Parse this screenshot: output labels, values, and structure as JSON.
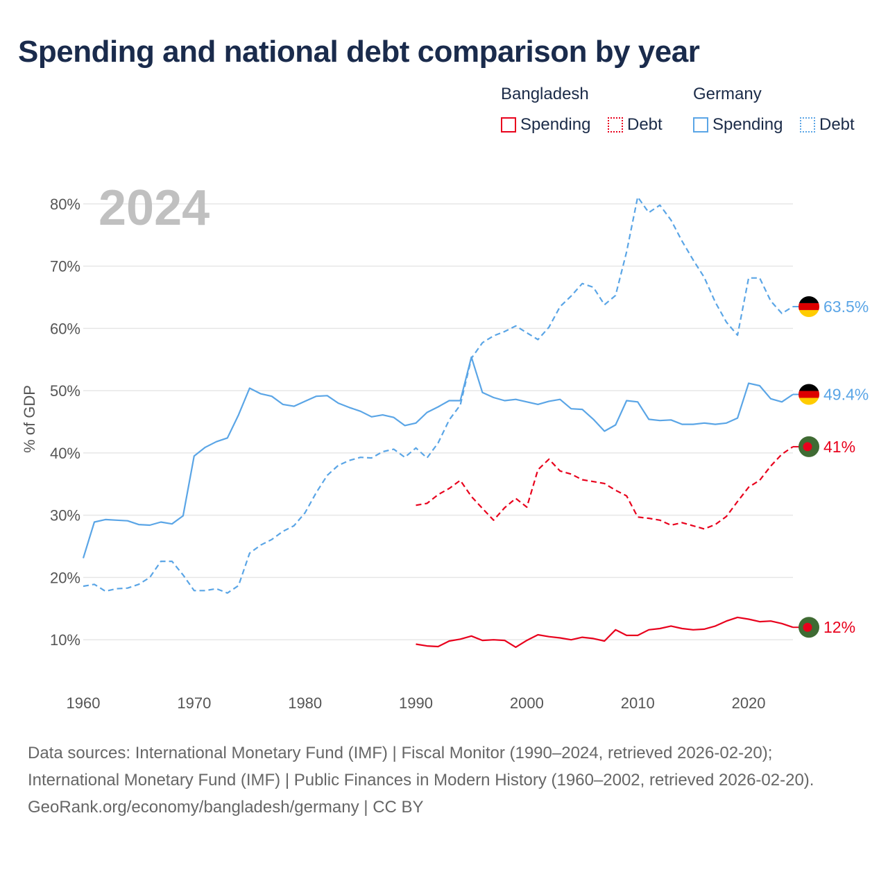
{
  "title": "Spending and national debt comparison by year",
  "legend": {
    "groups": [
      {
        "name": "Bangladesh",
        "spending_label": "Spending",
        "debt_label": "Debt",
        "color": "#e8001c"
      },
      {
        "name": "Germany",
        "spending_label": "Spending",
        "debt_label": "Debt",
        "color": "#5aa5e6"
      }
    ]
  },
  "footer": {
    "sources": "Data sources: International Monetary Fund (IMF) | Fiscal Monitor (1990–2024, retrieved 2026-02-20); International Monetary Fund (IMF) | Public Finances in Modern History (1960–2002, retrieved 2026-02-20).",
    "credit": "GeoRank.org/economy/bangladesh/germany | CC BY"
  },
  "chart_data": {
    "type": "line",
    "title": "Spending and national debt comparison by year",
    "year_overlay": "2024",
    "ylabel": "% of GDP",
    "xlabel": "",
    "xlim": [
      1960,
      2024
    ],
    "ylim": [
      3,
      86
    ],
    "yticks": [
      10,
      20,
      30,
      40,
      50,
      60,
      70,
      80
    ],
    "ytick_labels": [
      "10%",
      "20%",
      "30%",
      "40%",
      "50%",
      "60%",
      "70%",
      "80%"
    ],
    "xticks": [
      1960,
      1970,
      1980,
      1990,
      2000,
      2010,
      2020
    ],
    "xtick_labels": [
      "1960",
      "1970",
      "1980",
      "1990",
      "2000",
      "2010",
      "2020"
    ],
    "grid": true,
    "legend_position": "top-right",
    "series": [
      {
        "name": "Germany Debt",
        "country": "Germany",
        "measure": "Debt",
        "color": "#5aa5e6",
        "dash": "dashed",
        "end_label": "63.5%",
        "flag": "germany",
        "start_year": 1960,
        "values": [
          18.6,
          18.9,
          17.8,
          18.2,
          18.3,
          18.9,
          20.0,
          22.6,
          22.6,
          20.4,
          17.9,
          17.9,
          18.2,
          17.5,
          18.7,
          23.9,
          25.2,
          26.1,
          27.4,
          28.3,
          30.4,
          33.6,
          36.4,
          38.0,
          38.8,
          39.3,
          39.2,
          40.2,
          40.6,
          39.3,
          40.8,
          39.2,
          41.6,
          45.3,
          47.7,
          55.2,
          57.7,
          58.8,
          59.5,
          60.4,
          59.3,
          58.2,
          60.2,
          63.5,
          65.2,
          67.2,
          66.6,
          63.8,
          65.3,
          72.3,
          81.1,
          78.6,
          79.8,
          77.4,
          74.0,
          71.0,
          68.2,
          64.2,
          61.0,
          58.9,
          68.1,
          68.1,
          64.4,
          62.4,
          63.5
        ]
      },
      {
        "name": "Germany Spending",
        "country": "Germany",
        "measure": "Spending",
        "color": "#5aa5e6",
        "dash": "solid",
        "end_label": "49.4%",
        "flag": "germany",
        "start_year": 1960,
        "values": [
          23.1,
          28.9,
          29.3,
          29.2,
          29.1,
          28.5,
          28.4,
          28.9,
          28.6,
          29.9,
          39.5,
          40.9,
          41.8,
          42.4,
          46.1,
          50.4,
          49.5,
          49.1,
          47.8,
          47.5,
          48.3,
          49.1,
          49.2,
          48.0,
          47.3,
          46.7,
          45.8,
          46.1,
          45.7,
          44.4,
          44.8,
          46.5,
          47.4,
          48.4,
          48.4,
          55.4,
          49.7,
          48.9,
          48.4,
          48.6,
          48.2,
          47.8,
          48.3,
          48.6,
          47.1,
          47.0,
          45.4,
          43.5,
          44.5,
          48.4,
          48.2,
          45.4,
          45.2,
          45.3,
          44.6,
          44.6,
          44.8,
          44.6,
          44.8,
          45.6,
          51.2,
          50.8,
          48.7,
          48.2,
          49.4
        ]
      },
      {
        "name": "Bangladesh Debt",
        "country": "Bangladesh",
        "measure": "Debt",
        "color": "#e8001c",
        "dash": "dashed",
        "end_label": "41%",
        "flag": "bangladesh",
        "start_year": 1990,
        "values": [
          31.6,
          31.9,
          33.3,
          34.3,
          35.6,
          33.0,
          31.1,
          29.2,
          31.2,
          32.7,
          31.3,
          37.3,
          39.0,
          37.1,
          36.6,
          35.7,
          35.4,
          35.1,
          34.0,
          33.1,
          29.7,
          29.5,
          29.2,
          28.4,
          28.8,
          28.3,
          27.8,
          28.5,
          29.8,
          32.2,
          34.5,
          35.6,
          37.9,
          39.8,
          41.0
        ]
      },
      {
        "name": "Bangladesh Spending",
        "country": "Bangladesh",
        "measure": "Spending",
        "color": "#e8001c",
        "dash": "solid",
        "end_label": "12%",
        "flag": "bangladesh",
        "start_year": 1990,
        "values": [
          9.3,
          9.0,
          8.9,
          9.8,
          10.1,
          10.6,
          9.9,
          10.0,
          9.9,
          8.8,
          9.9,
          10.8,
          10.5,
          10.3,
          10.0,
          10.4,
          10.2,
          9.8,
          11.6,
          10.7,
          10.7,
          11.6,
          11.8,
          12.2,
          11.8,
          11.6,
          11.7,
          12.2,
          13.0,
          13.6,
          13.3,
          12.9,
          13.0,
          12.6,
          12.0
        ]
      }
    ]
  }
}
